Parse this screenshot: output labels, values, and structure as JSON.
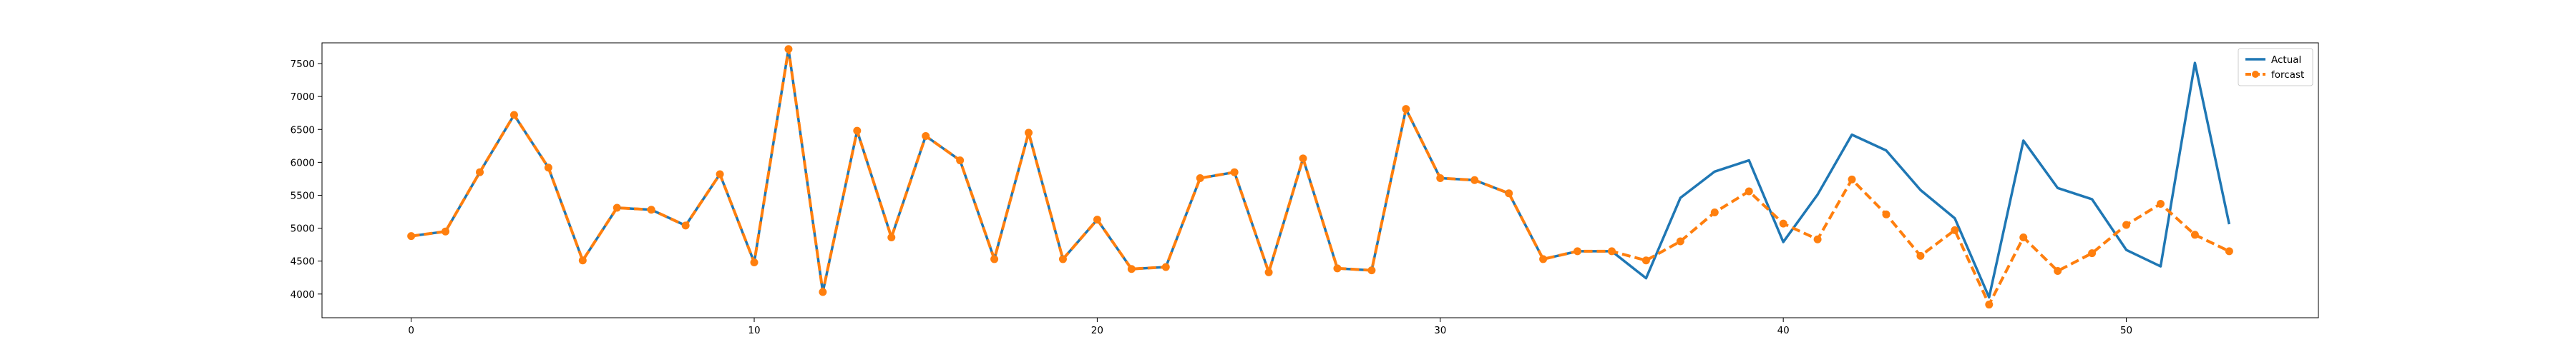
{
  "chart_data": {
    "type": "line",
    "title": "",
    "xlabel": "",
    "ylabel": "",
    "xlim": [
      -2.6,
      55.6
    ],
    "ylim": [
      3640,
      7815
    ],
    "xticks": [
      0,
      10,
      20,
      30,
      40,
      50
    ],
    "yticks": [
      4000,
      4500,
      5000,
      5500,
      6000,
      6500,
      7000,
      7500
    ],
    "grid": false,
    "legend_position": "top-right",
    "series": [
      {
        "name": "Actual",
        "color": "#1f77b4",
        "style": "solid",
        "marker": "none",
        "x": [
          0,
          1,
          2,
          3,
          4,
          5,
          6,
          7,
          8,
          9,
          10,
          11,
          12,
          13,
          14,
          15,
          16,
          17,
          18,
          19,
          20,
          21,
          22,
          23,
          24,
          25,
          26,
          27,
          28,
          29,
          30,
          31,
          32,
          33,
          34,
          35,
          36,
          37,
          38,
          39,
          40,
          41,
          42,
          43,
          44,
          45,
          46,
          47,
          48,
          49,
          50,
          51,
          52,
          53
        ],
        "values": [
          4880,
          4950,
          5850,
          6720,
          5920,
          4510,
          5310,
          5280,
          5040,
          5820,
          4480,
          7720,
          4030,
          6480,
          4860,
          6400,
          6030,
          4530,
          6450,
          4530,
          5130,
          4380,
          4410,
          5760,
          5850,
          4330,
          6060,
          4390,
          4360,
          6810,
          5760,
          5730,
          5530,
          4530,
          4650,
          4650,
          4240,
          5460,
          5860,
          6030,
          4790,
          5510,
          6420,
          6180,
          5580,
          5150,
          3950,
          6330,
          5610,
          5440,
          4670,
          4420,
          7510,
          5060
        ]
      },
      {
        "name": "forcast",
        "color": "#ff7f0e",
        "style": "dashed",
        "marker": "circle",
        "x": [
          0,
          1,
          2,
          3,
          4,
          5,
          6,
          7,
          8,
          9,
          10,
          11,
          12,
          13,
          14,
          15,
          16,
          17,
          18,
          19,
          20,
          21,
          22,
          23,
          24,
          25,
          26,
          27,
          28,
          29,
          30,
          31,
          32,
          33,
          34,
          35,
          36,
          37,
          38,
          39,
          40,
          41,
          42,
          43,
          44,
          45,
          46,
          47,
          48,
          49,
          50,
          51,
          52,
          53
        ],
        "values": [
          4880,
          4950,
          5850,
          6720,
          5920,
          4510,
          5310,
          5280,
          5040,
          5820,
          4480,
          7720,
          4030,
          6480,
          4860,
          6400,
          6030,
          4530,
          6450,
          4530,
          5130,
          4380,
          4410,
          5760,
          5850,
          4330,
          6060,
          4390,
          4360,
          6810,
          5760,
          5730,
          5530,
          4530,
          4650,
          4650,
          4510,
          4800,
          5240,
          5560,
          5070,
          4830,
          5740,
          5210,
          4580,
          4970,
          3840,
          4860,
          4350,
          4620,
          5050,
          5370,
          4900,
          4650
        ]
      }
    ]
  }
}
